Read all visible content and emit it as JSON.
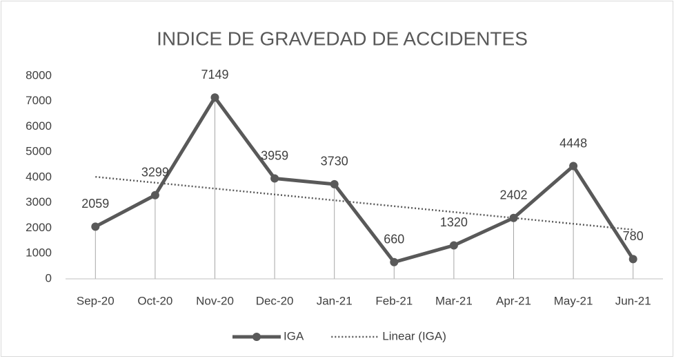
{
  "chart_data": {
    "type": "line",
    "title": "INDICE DE GRAVEDAD DE ACCIDENTES",
    "categories": [
      "Sep-20",
      "Oct-20",
      "Nov-20",
      "Dec-20",
      "Jan-21",
      "Feb-21",
      "Mar-21",
      "Apr-21",
      "May-21",
      "Jun-21"
    ],
    "series": [
      {
        "name": "IGA",
        "color": "#595959",
        "style": "solid",
        "markers": true,
        "data_labels": true,
        "drop_lines": true,
        "values": [
          2059,
          3299,
          7149,
          3959,
          3730,
          660,
          1320,
          2402,
          4448,
          780
        ]
      },
      {
        "name": "Linear (IGA)",
        "color": "#595959",
        "style": "dotted",
        "markers": false,
        "data_labels": false,
        "drop_lines": false,
        "values": [
          4022,
          3791,
          3559,
          3328,
          3096,
          2865,
          2633,
          2402,
          2171,
          1939
        ]
      }
    ],
    "ylim": [
      0,
      8000
    ],
    "yticks": [
      0,
      1000,
      2000,
      3000,
      4000,
      5000,
      6000,
      7000,
      8000
    ],
    "grid": false,
    "legend": "bottom"
  }
}
